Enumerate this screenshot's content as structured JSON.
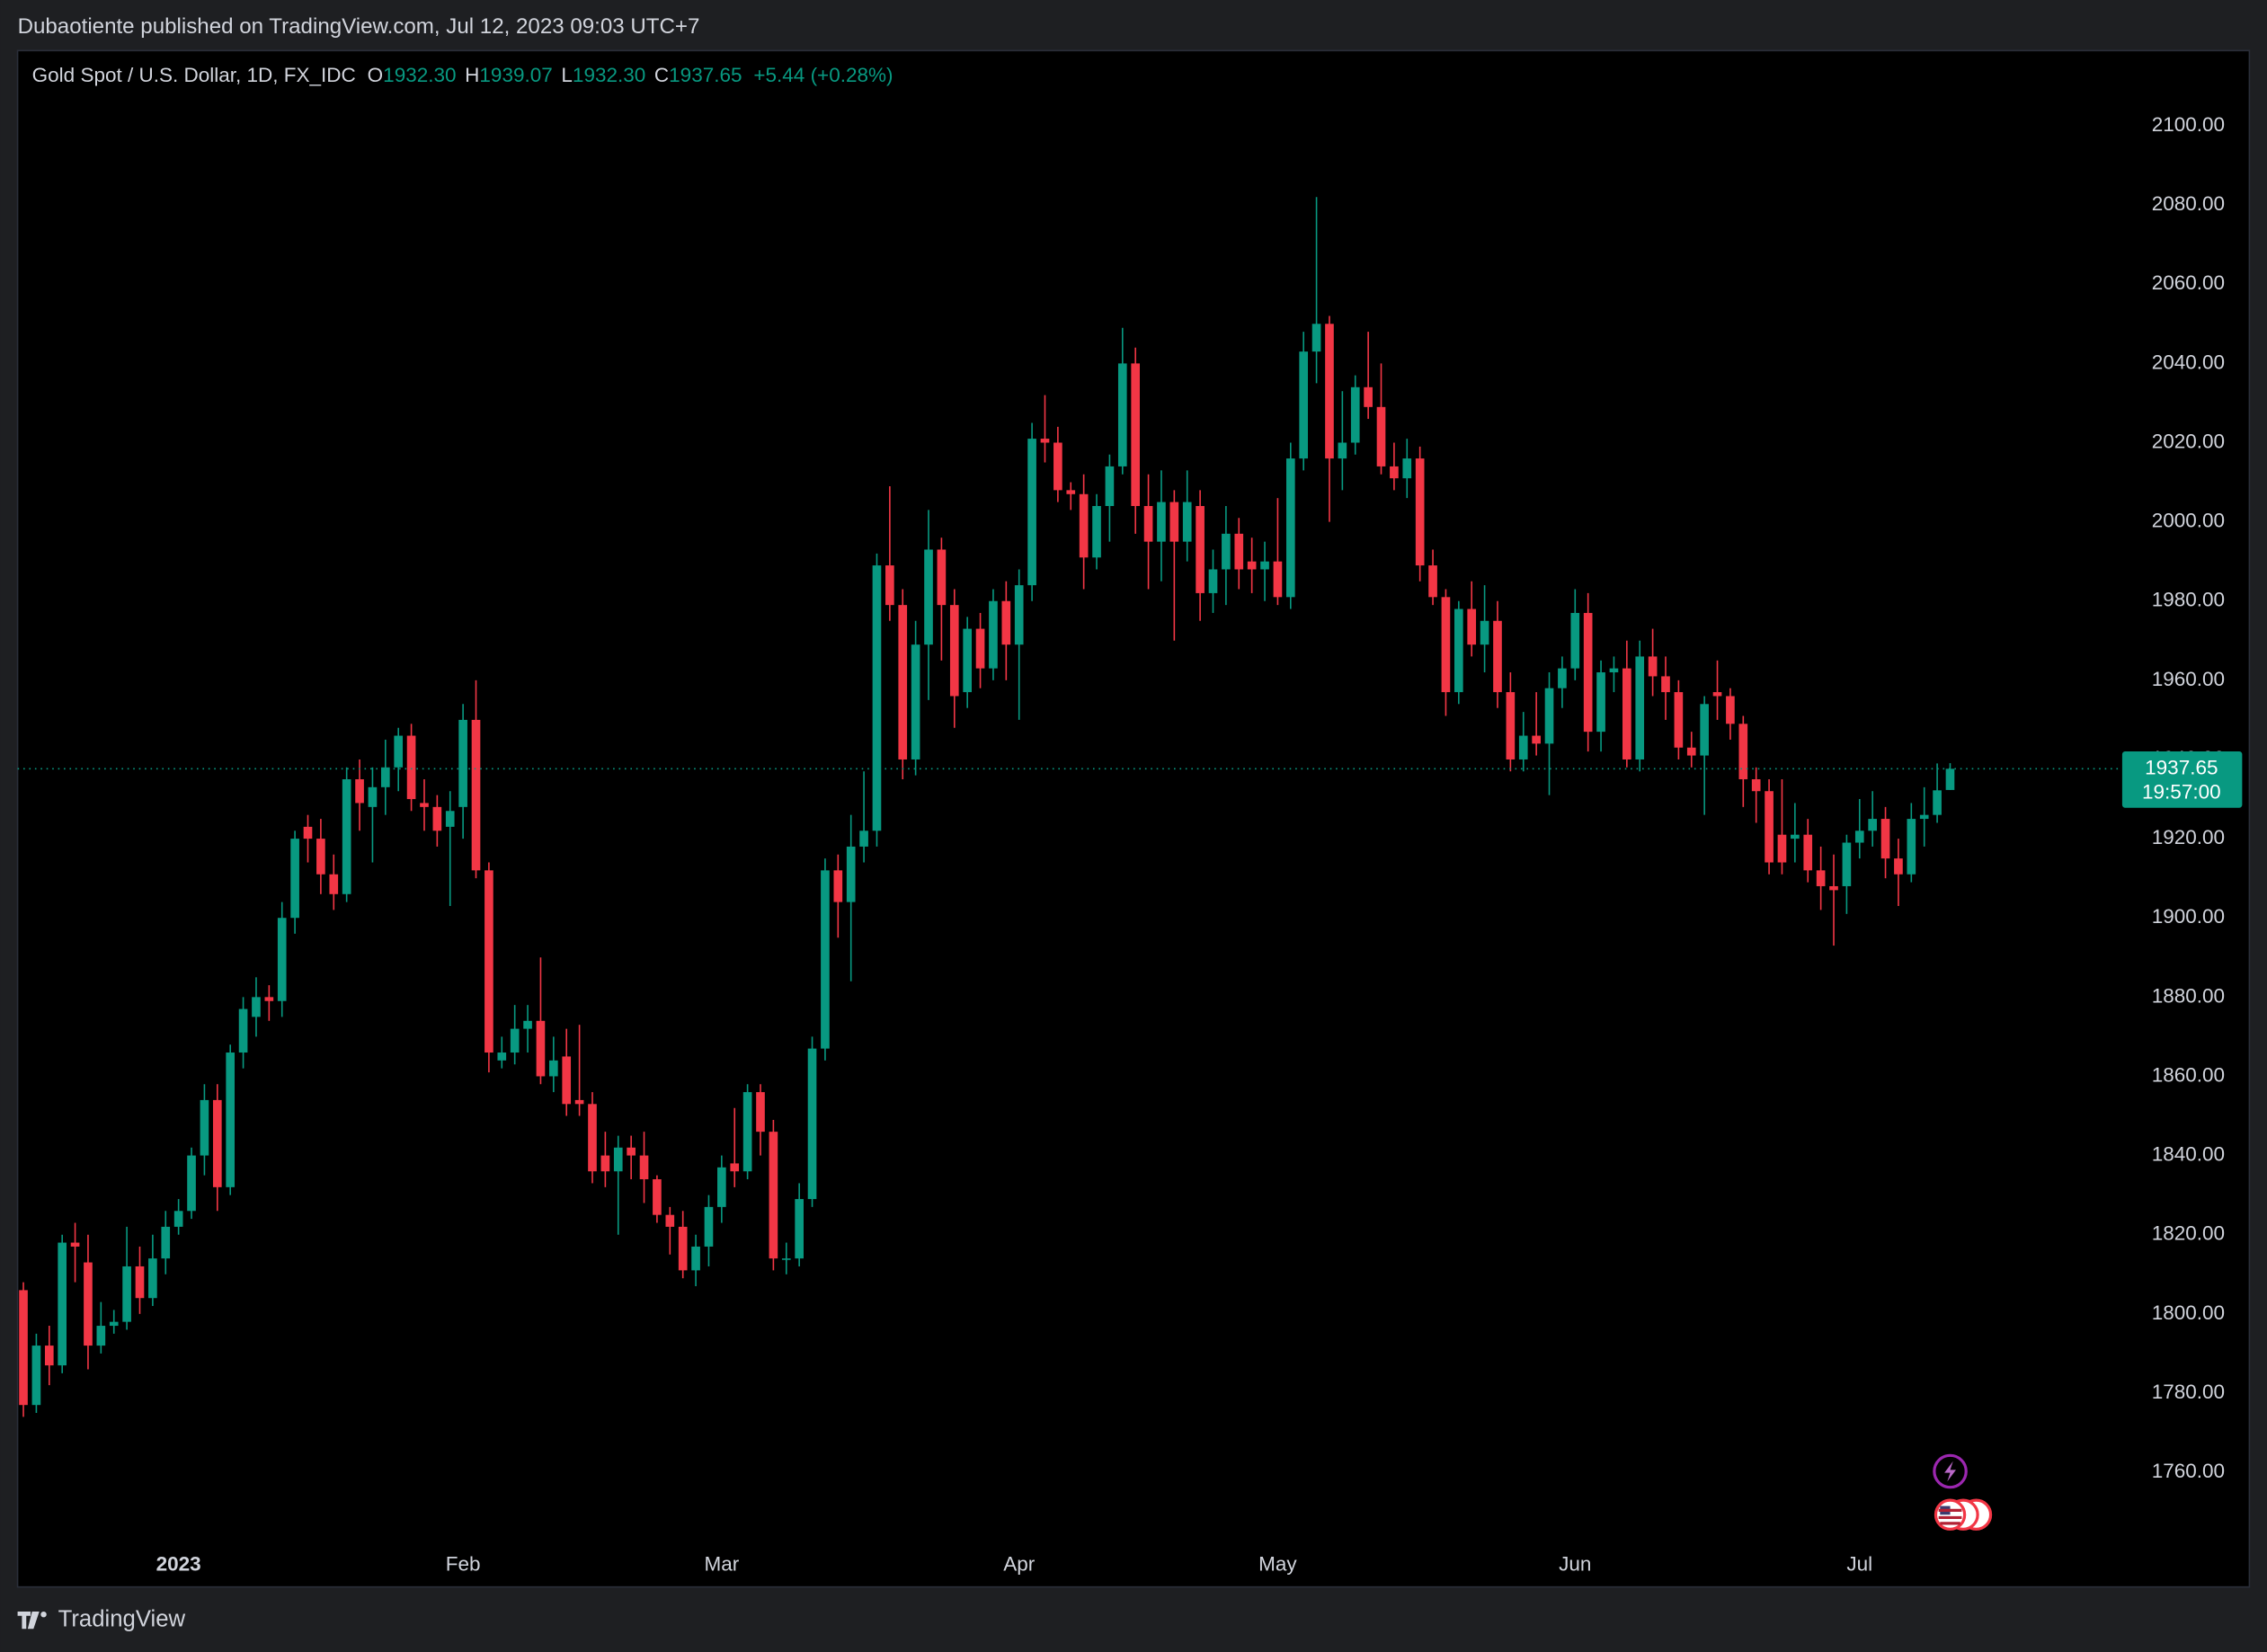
{
  "publisher": "Dubaotiente published on TradingView.com, Jul 12, 2023 09:03 UTC+7",
  "footer": {
    "brand": "TradingView"
  },
  "chart_data": {
    "type": "candlestick",
    "title": "Gold Spot / U.S. Dollar, 1D, FX_IDC",
    "legend": {
      "labels": [
        "O",
        "H",
        "L",
        "C"
      ],
      "values": [
        "1932.30",
        "1939.07",
        "1932.30",
        "1937.65"
      ],
      "change": "+5.44 (+0.28%)"
    },
    "countdown": "19:57:00",
    "up_color": "#089981",
    "down_color": "#f23645",
    "grid": false,
    "ylim": [
      1742,
      2119
    ],
    "yticks": [
      {
        "value": 1760,
        "label": "1760.00"
      },
      {
        "value": 1780,
        "label": "1780.00"
      },
      {
        "value": 1800,
        "label": "1800.00"
      },
      {
        "value": 1820,
        "label": "1820.00"
      },
      {
        "value": 1840,
        "label": "1840.00"
      },
      {
        "value": 1860,
        "label": "1860.00"
      },
      {
        "value": 1880,
        "label": "1880.00"
      },
      {
        "value": 1900,
        "label": "1900.00"
      },
      {
        "value": 1920,
        "label": "1920.00"
      },
      {
        "value": 1940,
        "label": "1940.00"
      },
      {
        "value": 1960,
        "label": "1960.00"
      },
      {
        "value": 1980,
        "label": "1980.00"
      },
      {
        "value": 2000,
        "label": "2000.00"
      },
      {
        "value": 2020,
        "label": "2020.00"
      },
      {
        "value": 2040,
        "label": "2040.00"
      },
      {
        "value": 2060,
        "label": "2060.00"
      },
      {
        "value": 2080,
        "label": "2080.00"
      },
      {
        "value": 2100,
        "label": "2100.00"
      }
    ],
    "categories": [
      null,
      null,
      null,
      null,
      null,
      null,
      null,
      null,
      null,
      null,
      null,
      null,
      "2023",
      null,
      null,
      null,
      null,
      null,
      null,
      null,
      null,
      null,
      null,
      null,
      null,
      null,
      null,
      null,
      null,
      null,
      null,
      null,
      null,
      null,
      "Feb",
      null,
      null,
      null,
      null,
      null,
      null,
      null,
      null,
      null,
      null,
      null,
      null,
      null,
      null,
      null,
      null,
      null,
      null,
      null,
      "Mar",
      null,
      null,
      null,
      null,
      null,
      null,
      null,
      null,
      null,
      null,
      null,
      null,
      null,
      null,
      null,
      null,
      null,
      null,
      null,
      null,
      null,
      null,
      "Apr",
      null,
      null,
      null,
      null,
      null,
      null,
      null,
      null,
      null,
      null,
      null,
      null,
      null,
      null,
      null,
      null,
      null,
      null,
      null,
      "May",
      null,
      null,
      null,
      null,
      null,
      null,
      null,
      null,
      null,
      null,
      null,
      null,
      null,
      null,
      null,
      null,
      null,
      null,
      null,
      null,
      null,
      null,
      "Jun",
      null,
      null,
      null,
      null,
      null,
      null,
      null,
      null,
      null,
      null,
      null,
      null,
      null,
      null,
      null,
      null,
      null,
      null,
      null,
      null,
      null,
      "Jul",
      null,
      null,
      null,
      null,
      null,
      null,
      null
    ],
    "open": [
      1806,
      1777,
      1792,
      1787,
      1818,
      1813,
      1792,
      1797,
      1798,
      1812,
      1804,
      1814,
      1822,
      1826,
      1840,
      1854,
      1832,
      1866,
      1875,
      1880,
      1879,
      1900,
      1923,
      1920,
      1911,
      1906,
      1935,
      1928,
      1933,
      1938,
      1946,
      1929,
      1928,
      1923,
      1928,
      1950,
      1912,
      1864,
      1866,
      1872,
      1874,
      1860,
      1865,
      1854,
      1853,
      1840,
      1836,
      1842,
      1840,
      1834,
      1825,
      1822,
      1811,
      1817,
      1827,
      1838,
      1836,
      1856,
      1846,
      1814,
      1814,
      1829,
      1867,
      1912,
      1904,
      1918,
      1922,
      1989,
      1979,
      1940,
      1969,
      1993,
      1979,
      1957,
      1973,
      1963,
      1980,
      1969,
      1984,
      2021,
      2020,
      2008,
      2007,
      1991,
      2004,
      2014,
      2040,
      2004,
      1995,
      2005,
      1995,
      2004,
      1982,
      1988,
      1997,
      1990,
      1988,
      1990,
      1981,
      2016,
      2043,
      2050,
      2016,
      2020,
      2034,
      2029,
      2014,
      2011,
      2016,
      1989,
      1981,
      1957,
      1978,
      1969,
      1975,
      1957,
      1940,
      1946,
      1944,
      1958,
      1963,
      1977,
      1947,
      1962,
      1963,
      1940,
      1966,
      1961,
      1957,
      1943,
      1941,
      1957,
      1956,
      1949,
      1935,
      1932,
      1921,
      1920,
      1921,
      1912,
      1908,
      1908,
      1919,
      1922,
      1925,
      1915,
      1911,
      1925,
      1926,
      1932.3
    ],
    "high": [
      1808,
      1795,
      1797,
      1820,
      1823,
      1820,
      1803,
      1801,
      1822,
      1817,
      1820,
      1826,
      1829,
      1842,
      1858,
      1858,
      1868,
      1880,
      1885,
      1883,
      1904,
      1922,
      1926,
      1925,
      1916,
      1938,
      1940,
      1938,
      1945,
      1948,
      1949,
      1935,
      1931,
      1932,
      1954,
      1960,
      1914,
      1870,
      1878,
      1878,
      1890,
      1870,
      1872,
      1873,
      1856,
      1846,
      1845,
      1845,
      1846,
      1835,
      1827,
      1826,
      1820,
      1830,
      1840,
      1852,
      1858,
      1858,
      1849,
      1818,
      1833,
      1870,
      1915,
      1916,
      1926,
      1937,
      1992,
      2009,
      1983,
      1975,
      2003,
      1996,
      1983,
      1976,
      1977,
      1983,
      1985,
      1988,
      2025,
      2032,
      2024,
      2010,
      2012,
      2007,
      2017,
      2049,
      2044,
      2012,
      2013,
      2008,
      2013,
      2008,
      1993,
      2004,
      2001,
      1996,
      1995,
      2006,
      2020,
      2048,
      2082,
      2052,
      2033,
      2037,
      2048,
      2040,
      2020,
      2021,
      2019,
      1993,
      1983,
      1980,
      1985,
      1984,
      1980,
      1962,
      1952,
      1957,
      1962,
      1966,
      1983,
      1982,
      1965,
      1966,
      1970,
      1970,
      1973,
      1966,
      1960,
      1947,
      1956,
      1965,
      1958,
      1951,
      1938,
      1935,
      1935,
      1929,
      1925,
      1918,
      1916,
      1921,
      1930,
      1932,
      1928,
      1920,
      1929,
      1933,
      1939,
      1939.07
    ],
    "low": [
      1774,
      1775,
      1782,
      1785,
      1808,
      1786,
      1790,
      1795,
      1796,
      1800,
      1802,
      1810,
      1820,
      1824,
      1835,
      1826,
      1830,
      1862,
      1870,
      1874,
      1875,
      1896,
      1914,
      1906,
      1902,
      1904,
      1922,
      1914,
      1926,
      1932,
      1927,
      1922,
      1918,
      1903,
      1920,
      1910,
      1861,
      1862,
      1863,
      1866,
      1858,
      1856,
      1850,
      1850,
      1833,
      1832,
      1820,
      1834,
      1828,
      1823,
      1815,
      1809,
      1807,
      1812,
      1823,
      1832,
      1834,
      1840,
      1811,
      1810,
      1812,
      1827,
      1864,
      1895,
      1884,
      1914,
      1918,
      1975,
      1935,
      1936,
      1955,
      1965,
      1948,
      1953,
      1958,
      1960,
      1960,
      1950,
      1980,
      2015,
      2005,
      2003,
      1983,
      1988,
      1995,
      2012,
      1997,
      1983,
      1985,
      1970,
      1990,
      1975,
      1977,
      1979,
      1983,
      1982,
      1980,
      1979,
      1978,
      2013,
      2035,
      2000,
      2008,
      2017,
      2026,
      2012,
      2008,
      2006,
      1985,
      1979,
      1951,
      1954,
      1966,
      1962,
      1953,
      1937,
      1937,
      1941,
      1931,
      1953,
      1960,
      1942,
      1942,
      1957,
      1938,
      1937,
      1956,
      1950,
      1940,
      1938,
      1926,
      1950,
      1945,
      1928,
      1924,
      1911,
      1911,
      1914,
      1909,
      1902,
      1893,
      1901,
      1915,
      1918,
      1910,
      1903,
      1909,
      1918,
      1924,
      1932.3
    ],
    "close": [
      1777,
      1792,
      1787,
      1818,
      1817,
      1792,
      1797,
      1798,
      1812,
      1804,
      1814,
      1822,
      1826,
      1840,
      1854,
      1832,
      1866,
      1877,
      1880,
      1879,
      1900,
      1920,
      1920,
      1911,
      1906,
      1935,
      1929,
      1933,
      1938,
      1946,
      1930,
      1928,
      1922,
      1927,
      1950,
      1912,
      1866,
      1866,
      1872,
      1874,
      1860,
      1864,
      1853,
      1853,
      1836,
      1836,
      1842,
      1840,
      1834,
      1825,
      1822,
      1811,
      1817,
      1827,
      1837,
      1836,
      1856,
      1846,
      1814,
      1814,
      1829,
      1867,
      1912,
      1904,
      1918,
      1922,
      1989,
      1979,
      1940,
      1969,
      1993,
      1979,
      1956,
      1973,
      1963,
      1980,
      1969,
      1984,
      2021,
      2020,
      2008,
      2007,
      1991,
      2004,
      2014,
      2040,
      2004,
      1995,
      2005,
      1995,
      2005,
      1982,
      1988,
      1997,
      1988,
      1988,
      1990,
      1981,
      2016,
      2043,
      2050,
      2016,
      2020,
      2034,
      2029,
      2014,
      2011,
      2016,
      1989,
      1981,
      1957,
      1978,
      1969,
      1975,
      1957,
      1940,
      1946,
      1944,
      1958,
      1963,
      1977,
      1947,
      1962,
      1963,
      1940,
      1966,
      1961,
      1957,
      1943,
      1941,
      1954,
      1956,
      1949,
      1935,
      1932,
      1914,
      1914,
      1921,
      1912,
      1908,
      1907,
      1919,
      1922,
      1925,
      1915,
      1911,
      1925,
      1926,
      1932.21,
      1937.65
    ]
  }
}
